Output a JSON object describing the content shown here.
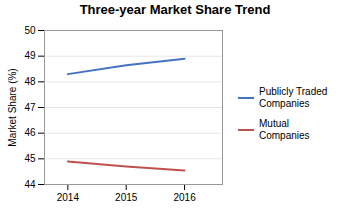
{
  "chart_data": {
    "type": "line",
    "title": "Three-year Market Share Trend",
    "y_label": "Market Share (%)",
    "x": [
      2014,
      2015,
      2016
    ],
    "series": [
      {
        "name": "Publicly Traded\nCompanies",
        "color": "#4472C4",
        "values": [
          48.3,
          48.65,
          48.9
        ]
      },
      {
        "name": "Mutual\nCompanies",
        "color": "#C0504D",
        "values": [
          44.9,
          44.7,
          44.55
        ]
      }
    ],
    "xlim": [
      2013.6,
      2016.65
    ],
    "xticks": [
      2014,
      2015,
      2016
    ],
    "ylim": [
      44,
      50
    ],
    "yticks": [
      44,
      45,
      46,
      47,
      48,
      49,
      50
    ],
    "grid": true,
    "legend": "right"
  }
}
